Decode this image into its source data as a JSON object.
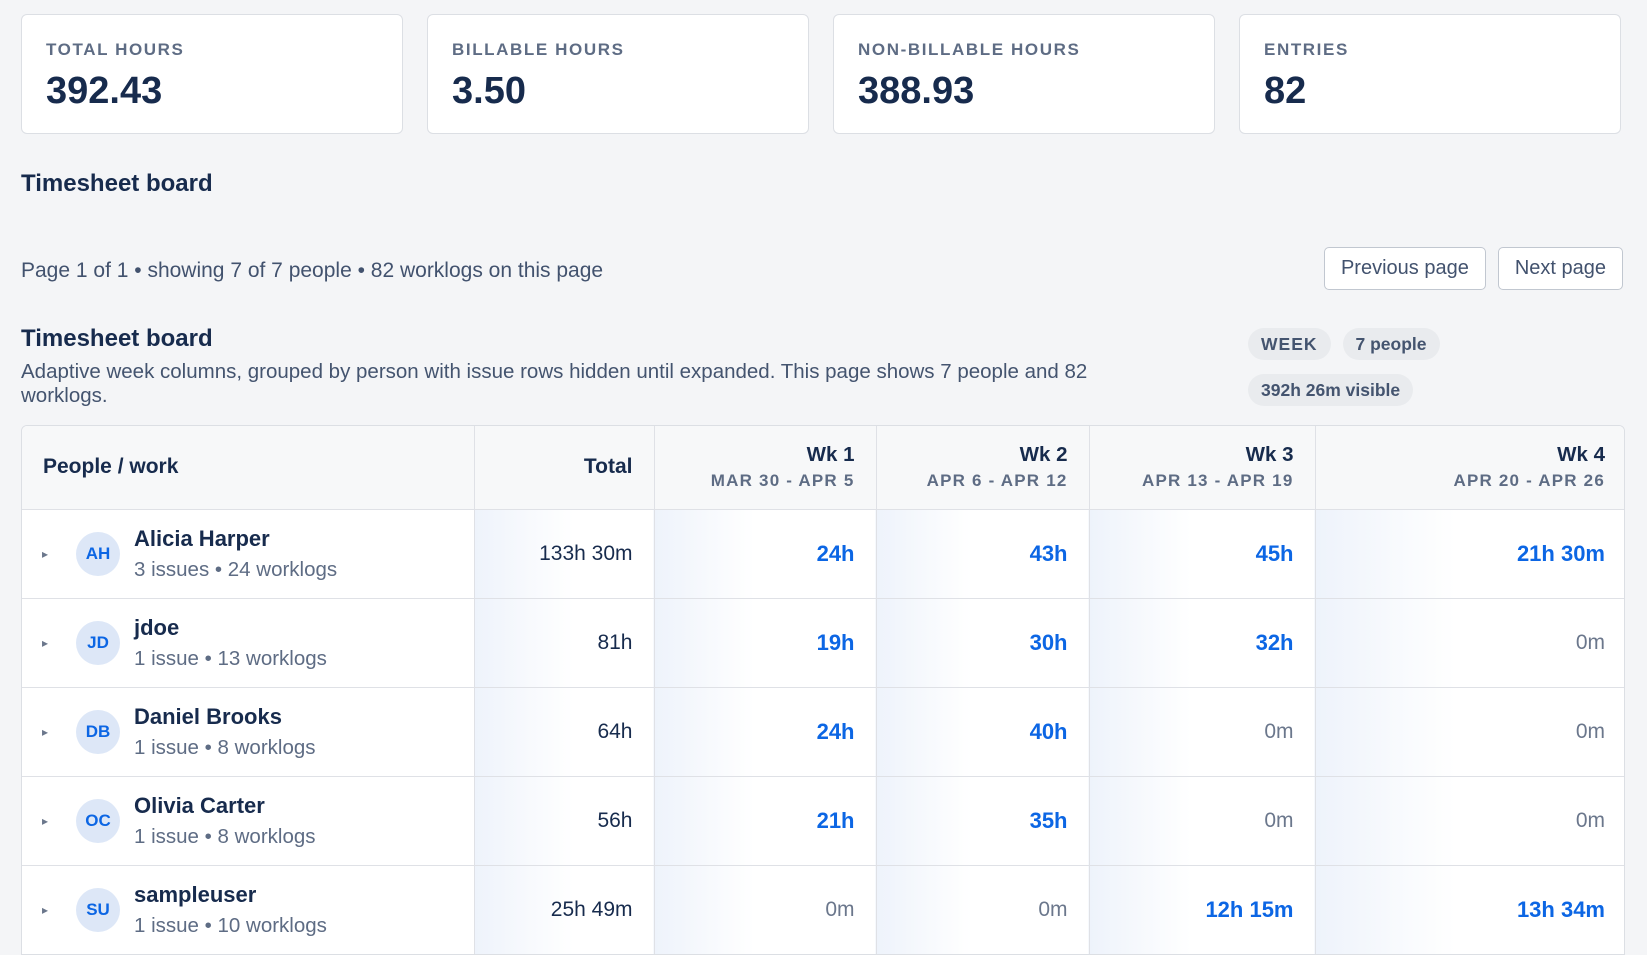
{
  "stats": [
    {
      "label": "TOTAL HOURS",
      "value": "392.43"
    },
    {
      "label": "BILLABLE HOURS",
      "value": "3.50"
    },
    {
      "label": "NON-BILLABLE HOURS",
      "value": "388.93"
    },
    {
      "label": "ENTRIES",
      "value": "82"
    }
  ],
  "board_header": {
    "title": "Timesheet board"
  },
  "pagination": {
    "info": "Page 1 of 1 • showing 7 of 7 people • 82 worklogs on this page",
    "prev_label": "Previous page",
    "next_label": "Next page"
  },
  "board": {
    "title": "Timesheet board",
    "description": "Adaptive week columns, grouped by person with issue rows hidden until expanded. This page shows 7 people and 82 worklogs.",
    "chips": [
      "WEEK",
      "7 people",
      "392h 26m visible"
    ]
  },
  "table": {
    "col_people": "People / work",
    "col_total": "Total",
    "weeks": [
      {
        "label": "Wk 1",
        "range": "MAR 30 - APR 5"
      },
      {
        "label": "Wk 2",
        "range": "APR 6 - APR 12"
      },
      {
        "label": "Wk 3",
        "range": "APR 13 - APR 19"
      },
      {
        "label": "Wk 4",
        "range": "APR 20 - APR 26"
      }
    ],
    "rows": [
      {
        "initials": "AH",
        "name": "Alicia Harper",
        "meta": "3 issues • 24 worklogs",
        "total": "133h 30m",
        "weeks": [
          "24h",
          "43h",
          "45h",
          "21h 30m"
        ]
      },
      {
        "initials": "JD",
        "name": "jdoe",
        "meta": "1 issue • 13 worklogs",
        "total": "81h",
        "weeks": [
          "19h",
          "30h",
          "32h",
          "0m"
        ]
      },
      {
        "initials": "DB",
        "name": "Daniel Brooks",
        "meta": "1 issue • 8 worklogs",
        "total": "64h",
        "weeks": [
          "24h",
          "40h",
          "0m",
          "0m"
        ]
      },
      {
        "initials": "OC",
        "name": "Olivia Carter",
        "meta": "1 issue • 8 worklogs",
        "total": "56h",
        "weeks": [
          "21h",
          "35h",
          "0m",
          "0m"
        ]
      },
      {
        "initials": "SU",
        "name": "sampleuser",
        "meta": "1 issue • 10 worklogs",
        "total": "25h 49m",
        "weeks": [
          "0m",
          "0m",
          "12h 15m",
          "13h 34m"
        ]
      }
    ]
  }
}
